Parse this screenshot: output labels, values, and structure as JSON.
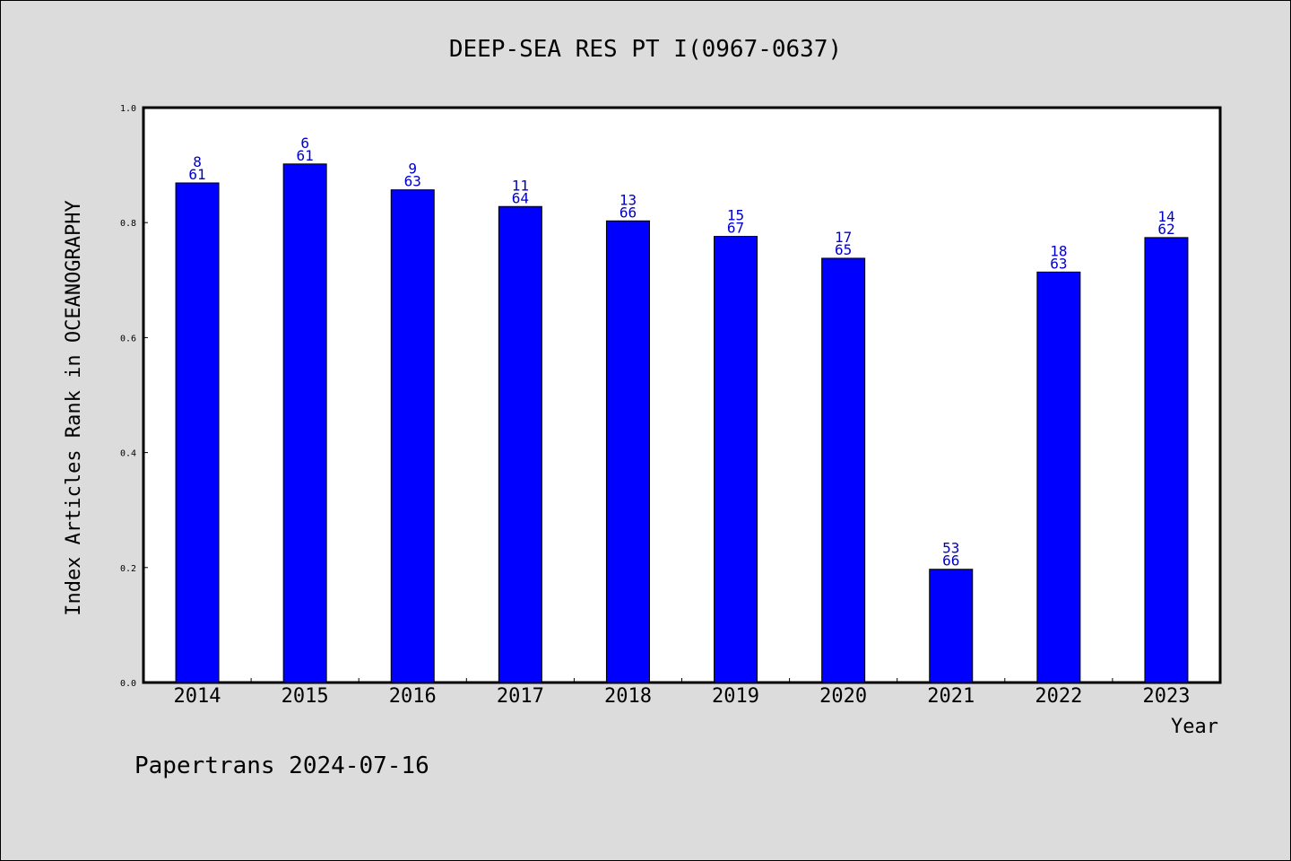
{
  "chart_data": {
    "type": "bar",
    "title": "DEEP-SEA RES PT I(0967-0637)",
    "ylabel": "Index Articles Rank in OCEANOGRAPHY",
    "xlabel": "Year",
    "ylim": [
      0.0,
      1.0
    ],
    "yticks": [
      "0.0",
      "0.2",
      "0.4",
      "0.6",
      "0.8",
      "1.0"
    ],
    "ytick_values": [
      0.0,
      0.2,
      0.4,
      0.6,
      0.8,
      1.0
    ],
    "categories": [
      "2014",
      "2015",
      "2016",
      "2017",
      "2018",
      "2019",
      "2020",
      "2021",
      "2022",
      "2023"
    ],
    "values": [
      0.869,
      0.902,
      0.857,
      0.828,
      0.803,
      0.776,
      0.738,
      0.197,
      0.714,
      0.774
    ],
    "rank_labels": [
      "8",
      "6",
      "9",
      "11",
      "13",
      "15",
      "17",
      "53",
      "18",
      "14"
    ],
    "total_labels": [
      "61",
      "61",
      "63",
      "64",
      "66",
      "67",
      "65",
      "66",
      "63",
      "62"
    ],
    "grid": false,
    "bar_color": "#0000ff",
    "label_color": "#0000cc"
  },
  "footer": {
    "text": "Papertrans 2024-07-16"
  }
}
